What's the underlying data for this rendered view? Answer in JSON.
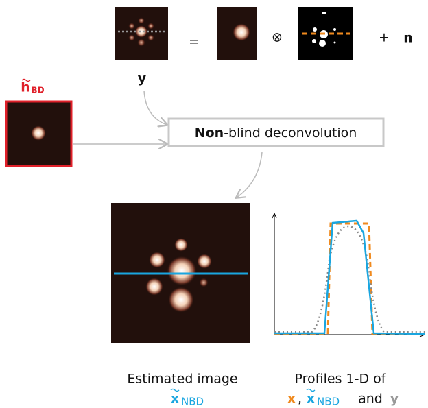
{
  "equation": {
    "equals": "=",
    "convolve": "⊗",
    "plus": "+",
    "noise": "n",
    "observed_label": "y"
  },
  "kernel_label": {
    "letter": "h",
    "subscript": "BD"
  },
  "process": {
    "bold": "Non",
    "rest": "-blind deconvolution"
  },
  "result": {
    "caption": "Estimated image",
    "letter": "x",
    "subscript": "NBD"
  },
  "profiles": {
    "caption": "Profiles 1-D of",
    "x": "x",
    "sep": ",",
    "letter": "x",
    "subscript": "NBD",
    "and": "and",
    "y": "y"
  }
}
